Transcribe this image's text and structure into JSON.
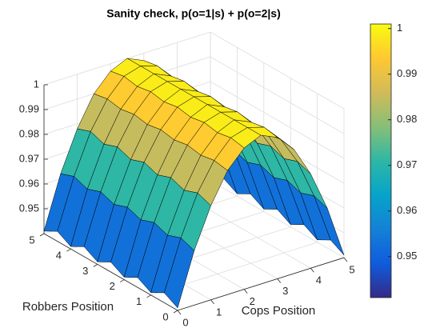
{
  "chart_data": {
    "type": "surface",
    "title": "Sanity check, p(o=1|s) + p(o=2|s)",
    "xlabel": "Cops Position",
    "ylabel": "Robbers Position",
    "x": [
      0,
      0.5,
      1,
      1.5,
      2,
      2.5,
      3,
      3.5,
      4,
      4.5,
      5
    ],
    "y": [
      0,
      0.5,
      1,
      1.5,
      2,
      2.5,
      3,
      3.5,
      4,
      4.5,
      5
    ],
    "z": [
      [
        0.941,
        0.962,
        0.978,
        0.99,
        0.997,
        1.0,
        0.997,
        0.99,
        0.978,
        0.962,
        0.941
      ],
      [
        0.944,
        0.964,
        0.98,
        0.991,
        0.998,
        1.0,
        0.998,
        0.991,
        0.98,
        0.964,
        0.944
      ],
      [
        0.941,
        0.962,
        0.978,
        0.99,
        0.997,
        1.0,
        0.997,
        0.99,
        0.978,
        0.962,
        0.941
      ],
      [
        0.944,
        0.964,
        0.98,
        0.991,
        0.998,
        1.0,
        0.998,
        0.991,
        0.98,
        0.964,
        0.944
      ],
      [
        0.941,
        0.962,
        0.978,
        0.99,
        0.997,
        1.0,
        0.997,
        0.99,
        0.978,
        0.962,
        0.941
      ],
      [
        0.944,
        0.964,
        0.98,
        0.991,
        0.998,
        1.0,
        0.998,
        0.991,
        0.98,
        0.964,
        0.944
      ],
      [
        0.941,
        0.962,
        0.978,
        0.99,
        0.997,
        1.0,
        0.997,
        0.99,
        0.978,
        0.962,
        0.941
      ],
      [
        0.944,
        0.964,
        0.98,
        0.991,
        0.998,
        1.0,
        0.998,
        0.991,
        0.98,
        0.964,
        0.944
      ],
      [
        0.941,
        0.962,
        0.978,
        0.99,
        0.997,
        1.0,
        0.997,
        0.99,
        0.978,
        0.962,
        0.941
      ],
      [
        0.944,
        0.964,
        0.98,
        0.991,
        0.998,
        1.0,
        0.998,
        0.991,
        0.98,
        0.964,
        0.944
      ],
      [
        0.941,
        0.962,
        0.978,
        0.99,
        0.997,
        1.0,
        0.997,
        0.99,
        0.978,
        0.962,
        0.941
      ]
    ],
    "xlim": [
      0,
      5
    ],
    "ylim": [
      0,
      5
    ],
    "zlim": [
      0.94,
      1
    ],
    "xticks": [
      0,
      1,
      2,
      3,
      4,
      5
    ],
    "yticks": [
      0,
      1,
      2,
      3,
      4,
      5
    ],
    "zticks": [
      0.95,
      0.96,
      0.97,
      0.98,
      0.99,
      1
    ],
    "clim": [
      0.941,
      1.001
    ],
    "cticks": [
      0.95,
      0.96,
      0.97,
      0.98,
      0.99,
      1
    ],
    "colormap": [
      "#352a87",
      "#0f5cdd",
      "#1481d6",
      "#06a4ca",
      "#2eb7a4",
      "#87bf77",
      "#d1bb59",
      "#fec832",
      "#f9fb0e"
    ],
    "grid": true
  }
}
